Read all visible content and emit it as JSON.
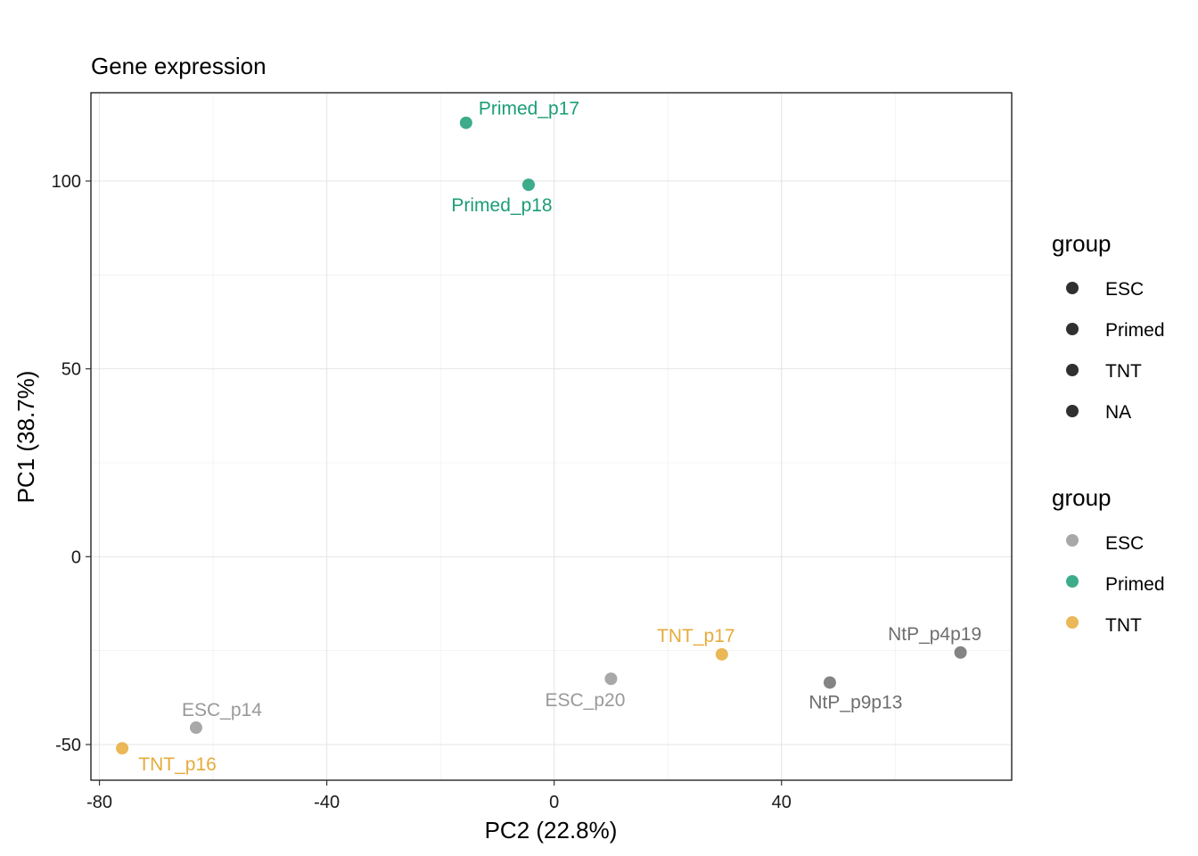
{
  "chart_data": {
    "type": "scatter",
    "title": "Gene expression",
    "xlabel": "PC2 (22.8%)",
    "ylabel": "PC1 (38.7%)",
    "xlim": [
      -81.5,
      80.5
    ],
    "ylim": [
      -59.5,
      123.5
    ],
    "xticks": [
      -80,
      -40,
      0,
      40
    ],
    "yticks": [
      -50,
      0,
      50,
      100
    ],
    "grid": true,
    "colors": {
      "ESC": "#999999",
      "Primed": "#1b9e77",
      "TNT": "#e6ab3a",
      "NA": "#6e6e6e"
    },
    "points": [
      {
        "label": "Primed_p17",
        "group": "Primed",
        "x": -15.5,
        "y": 115.5
      },
      {
        "label": "Primed_p18",
        "group": "Primed",
        "x": -4.5,
        "y": 99.0
      },
      {
        "label": "TNT_p17",
        "group": "TNT",
        "x": 29.5,
        "y": -26.0
      },
      {
        "label": "ESC_p20",
        "group": "ESC",
        "x": 10.0,
        "y": -32.5
      },
      {
        "label": "NtP_p9p13",
        "group": "NA",
        "x": 48.5,
        "y": -33.5
      },
      {
        "label": "NtP_p4p19",
        "group": "NA",
        "x": 71.5,
        "y": -25.5
      },
      {
        "label": "ESC_p14",
        "group": "ESC",
        "x": -63.0,
        "y": -45.5
      },
      {
        "label": "TNT_p16",
        "group": "TNT",
        "x": -76.0,
        "y": -51.0
      }
    ]
  },
  "legend1": {
    "title": "group",
    "items": [
      "ESC",
      "Primed",
      "TNT",
      "NA"
    ]
  },
  "legend2": {
    "title": "group",
    "items": [
      "ESC",
      "Primed",
      "TNT"
    ]
  }
}
